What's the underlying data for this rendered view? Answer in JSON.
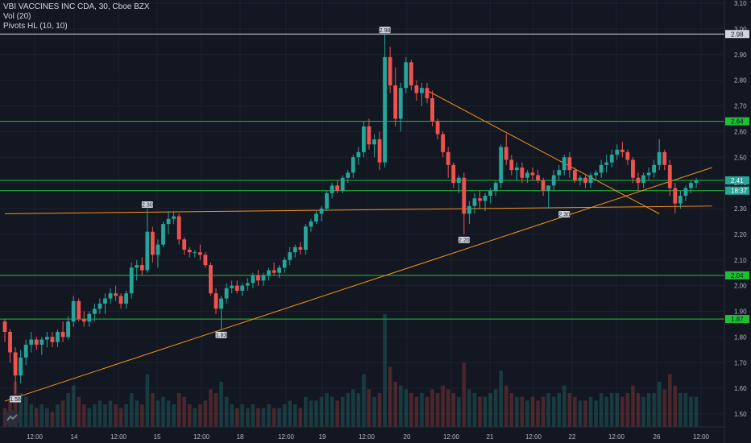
{
  "legend": {
    "title": "VBI VACCINES INC CDA, 30, Cboe BZX",
    "vol": "Vol (20)",
    "pivots": "Pivots HL (10, 10)"
  },
  "colors": {
    "background": "#131722",
    "grid": "#1e222d",
    "up": "#26a69a",
    "down": "#ef5350",
    "trendline": "#f7931a",
    "hline": "#1fbf34",
    "resistance": "#d1d4dc",
    "axis_text": "#b2b5be"
  },
  "chart_data": {
    "type": "candlestick",
    "title": "VBI VACCINES INC CDA, 30, Cboe BZX",
    "y_axis_ticks": [
      "3.10",
      "3.00",
      "2.90",
      "2.80",
      "2.70",
      "2.60",
      "2.50",
      "2.40",
      "2.30",
      "2.20",
      "2.10",
      "2.00",
      "1.90",
      "1.80",
      "1.70",
      "1.60",
      "1.50"
    ],
    "ylim": [
      1.46,
      3.1
    ],
    "x_axis_ticks": [
      "12:00",
      "14",
      "12:00",
      "15",
      "12:00",
      "18",
      "12:00",
      "19",
      "12:00",
      "20",
      "12:00",
      "21",
      "12:00",
      "22",
      "12:00",
      "26",
      "12:00"
    ],
    "price_labels": [
      {
        "value": 2.98,
        "text": "2.98",
        "style": "resistance"
      },
      {
        "value": 2.64,
        "text": "2.64",
        "style": "hline"
      },
      {
        "value": 2.41,
        "text": "2.41",
        "style": "last"
      },
      {
        "value": 2.37,
        "text": "18:37",
        "style": "countdown"
      },
      {
        "value": 2.04,
        "text": "2.04",
        "style": "hline"
      },
      {
        "value": 1.87,
        "text": "1.87",
        "style": "hline"
      }
    ],
    "horizontal_lines": [
      {
        "value": 2.98,
        "kind": "resistance"
      },
      {
        "value": 2.64,
        "kind": "level"
      },
      {
        "value": 2.41,
        "kind": "level"
      },
      {
        "value": 2.37,
        "kind": "level"
      },
      {
        "value": 2.04,
        "kind": "level"
      },
      {
        "value": 1.87,
        "kind": "level"
      }
    ],
    "trendlines": [
      {
        "from": {
          "i": 0,
          "v": 2.28
        },
        "to": {
          "i": 134,
          "v": 2.31
        }
      },
      {
        "from": {
          "i": 0,
          "v": 1.55
        },
        "to": {
          "i": 134,
          "v": 2.46
        }
      },
      {
        "from": {
          "i": 80,
          "v": 2.76
        },
        "to": {
          "i": 124,
          "v": 2.28
        }
      }
    ],
    "pivot_labels": [
      {
        "i": 2,
        "value": 1.58,
        "text": "1.58",
        "position": "below"
      },
      {
        "i": 27,
        "value": 2.3,
        "text": "2.30",
        "position": "above"
      },
      {
        "i": 41,
        "value": 1.83,
        "text": "1.83",
        "position": "below"
      },
      {
        "i": 72,
        "value": 2.98,
        "text": "2.98",
        "position": "above"
      },
      {
        "i": 87,
        "value": 2.2,
        "text": "2.20",
        "position": "below"
      },
      {
        "i": 106,
        "value": 2.3,
        "text": "2.30",
        "position": "below"
      }
    ],
    "candles_ohlc": [
      [
        1.86,
        1.87,
        1.78,
        1.82
      ],
      [
        1.82,
        1.83,
        1.7,
        1.74
      ],
      [
        1.74,
        1.76,
        1.58,
        1.65
      ],
      [
        1.65,
        1.75,
        1.62,
        1.72
      ],
      [
        1.72,
        1.79,
        1.69,
        1.77
      ],
      [
        1.77,
        1.82,
        1.74,
        1.79
      ],
      [
        1.79,
        1.8,
        1.75,
        1.77
      ],
      [
        1.77,
        1.8,
        1.73,
        1.79
      ],
      [
        1.79,
        1.82,
        1.76,
        1.8
      ],
      [
        1.8,
        1.82,
        1.76,
        1.78
      ],
      [
        1.78,
        1.83,
        1.76,
        1.82
      ],
      [
        1.82,
        1.86,
        1.78,
        1.8
      ],
      [
        1.8,
        1.88,
        1.79,
        1.86
      ],
      [
        1.86,
        1.96,
        1.84,
        1.94
      ],
      [
        1.94,
        1.95,
        1.86,
        1.87
      ],
      [
        1.87,
        1.9,
        1.84,
        1.86
      ],
      [
        1.86,
        1.9,
        1.84,
        1.89
      ],
      [
        1.89,
        1.93,
        1.86,
        1.91
      ],
      [
        1.91,
        1.95,
        1.89,
        1.93
      ],
      [
        1.93,
        1.97,
        1.89,
        1.95
      ],
      [
        1.95,
        1.99,
        1.93,
        1.97
      ],
      [
        1.97,
        2.0,
        1.94,
        1.96
      ],
      [
        1.96,
        1.97,
        1.91,
        1.93
      ],
      [
        1.93,
        1.98,
        1.91,
        1.97
      ],
      [
        1.97,
        2.09,
        1.95,
        2.07
      ],
      [
        2.07,
        2.1,
        2.02,
        2.08
      ],
      [
        2.08,
        2.11,
        2.04,
        2.06
      ],
      [
        2.06,
        2.3,
        2.05,
        2.21
      ],
      [
        2.21,
        2.23,
        2.09,
        2.12
      ],
      [
        2.12,
        2.18,
        2.07,
        2.16
      ],
      [
        2.16,
        2.25,
        2.15,
        2.24
      ],
      [
        2.24,
        2.29,
        2.2,
        2.26
      ],
      [
        2.26,
        2.29,
        2.24,
        2.27
      ],
      [
        2.27,
        2.28,
        2.16,
        2.18
      ],
      [
        2.18,
        2.19,
        2.12,
        2.14
      ],
      [
        2.14,
        2.15,
        2.11,
        2.13
      ],
      [
        2.13,
        2.14,
        2.11,
        2.13
      ],
      [
        2.13,
        2.16,
        2.1,
        2.12
      ],
      [
        2.12,
        2.13,
        2.07,
        2.08
      ],
      [
        2.08,
        2.09,
        1.96,
        1.97
      ],
      [
        1.97,
        1.99,
        1.89,
        1.91
      ],
      [
        1.91,
        1.96,
        1.83,
        1.95
      ],
      [
        1.95,
        2.01,
        1.93,
        1.99
      ],
      [
        1.99,
        2.02,
        1.97,
        2.0
      ],
      [
        2.0,
        2.02,
        1.97,
        1.98
      ],
      [
        1.98,
        2.01,
        1.96,
        2.0
      ],
      [
        2.0,
        2.03,
        1.98,
        2.01
      ],
      [
        2.01,
        2.05,
        1.99,
        2.04
      ],
      [
        2.04,
        2.06,
        2.0,
        2.02
      ],
      [
        2.02,
        2.05,
        2.0,
        2.04
      ],
      [
        2.04,
        2.07,
        2.02,
        2.06
      ],
      [
        2.06,
        2.09,
        2.04,
        2.05
      ],
      [
        2.05,
        2.08,
        2.03,
        2.07
      ],
      [
        2.07,
        2.11,
        2.05,
        2.1
      ],
      [
        2.1,
        2.15,
        2.08,
        2.13
      ],
      [
        2.13,
        2.16,
        2.11,
        2.15
      ],
      [
        2.15,
        2.17,
        2.12,
        2.14
      ],
      [
        2.14,
        2.24,
        2.12,
        2.23
      ],
      [
        2.23,
        2.26,
        2.21,
        2.25
      ],
      [
        2.25,
        2.29,
        2.24,
        2.28
      ],
      [
        2.28,
        2.31,
        2.25,
        2.3
      ],
      [
        2.3,
        2.37,
        2.29,
        2.36
      ],
      [
        2.36,
        2.4,
        2.34,
        2.39
      ],
      [
        2.39,
        2.41,
        2.36,
        2.37
      ],
      [
        2.37,
        2.43,
        2.36,
        2.42
      ],
      [
        2.42,
        2.45,
        2.4,
        2.44
      ],
      [
        2.44,
        2.51,
        2.42,
        2.5
      ],
      [
        2.5,
        2.54,
        2.47,
        2.52
      ],
      [
        2.52,
        2.64,
        2.5,
        2.62
      ],
      [
        2.62,
        2.65,
        2.53,
        2.55
      ],
      [
        2.55,
        2.59,
        2.5,
        2.57
      ],
      [
        2.57,
        2.6,
        2.45,
        2.48
      ],
      [
        2.48,
        2.98,
        2.46,
        2.89
      ],
      [
        2.89,
        2.93,
        2.75,
        2.78
      ],
      [
        2.78,
        2.85,
        2.62,
        2.65
      ],
      [
        2.65,
        2.79,
        2.6,
        2.77
      ],
      [
        2.77,
        2.89,
        2.75,
        2.87
      ],
      [
        2.87,
        2.88,
        2.76,
        2.78
      ],
      [
        2.78,
        2.8,
        2.72,
        2.75
      ],
      [
        2.75,
        2.79,
        2.7,
        2.77
      ],
      [
        2.77,
        2.79,
        2.71,
        2.73
      ],
      [
        2.73,
        2.76,
        2.62,
        2.64
      ],
      [
        2.64,
        2.65,
        2.57,
        2.59
      ],
      [
        2.59,
        2.6,
        2.5,
        2.52
      ],
      [
        2.52,
        2.54,
        2.42,
        2.47
      ],
      [
        2.47,
        2.48,
        2.38,
        2.4
      ],
      [
        2.4,
        2.43,
        2.36,
        2.42
      ],
      [
        2.42,
        2.44,
        2.2,
        2.28
      ],
      [
        2.28,
        2.33,
        2.24,
        2.31
      ],
      [
        2.31,
        2.36,
        2.28,
        2.34
      ],
      [
        2.34,
        2.37,
        2.3,
        2.33
      ],
      [
        2.33,
        2.36,
        2.29,
        2.35
      ],
      [
        2.35,
        2.38,
        2.32,
        2.37
      ],
      [
        2.37,
        2.41,
        2.35,
        2.4
      ],
      [
        2.4,
        2.55,
        2.38,
        2.54
      ],
      [
        2.54,
        2.59,
        2.47,
        2.49
      ],
      [
        2.49,
        2.51,
        2.43,
        2.45
      ],
      [
        2.45,
        2.48,
        2.41,
        2.46
      ],
      [
        2.46,
        2.48,
        2.4,
        2.42
      ],
      [
        2.42,
        2.45,
        2.4,
        2.44
      ],
      [
        2.44,
        2.46,
        2.41,
        2.43
      ],
      [
        2.43,
        2.45,
        2.4,
        2.41
      ],
      [
        2.41,
        2.42,
        2.35,
        2.37
      ],
      [
        2.37,
        2.39,
        2.3,
        2.39
      ],
      [
        2.39,
        2.45,
        2.37,
        2.43
      ],
      [
        2.43,
        2.47,
        2.41,
        2.45
      ],
      [
        2.45,
        2.51,
        2.43,
        2.5
      ],
      [
        2.5,
        2.52,
        2.42,
        2.45
      ],
      [
        2.45,
        2.46,
        2.4,
        2.41
      ],
      [
        2.41,
        2.43,
        2.39,
        2.42
      ],
      [
        2.42,
        2.43,
        2.38,
        2.4
      ],
      [
        2.4,
        2.44,
        2.38,
        2.43
      ],
      [
        2.43,
        2.45,
        2.41,
        2.44
      ],
      [
        2.44,
        2.49,
        2.42,
        2.47
      ],
      [
        2.47,
        2.51,
        2.44,
        2.48
      ],
      [
        2.48,
        2.53,
        2.46,
        2.51
      ],
      [
        2.51,
        2.55,
        2.49,
        2.53
      ],
      [
        2.53,
        2.56,
        2.5,
        2.52
      ],
      [
        2.52,
        2.53,
        2.47,
        2.49
      ],
      [
        2.49,
        2.5,
        2.4,
        2.42
      ],
      [
        2.42,
        2.44,
        2.37,
        2.4
      ],
      [
        2.4,
        2.44,
        2.38,
        2.43
      ],
      [
        2.43,
        2.46,
        2.41,
        2.44
      ],
      [
        2.44,
        2.49,
        2.42,
        2.47
      ],
      [
        2.47,
        2.57,
        2.45,
        2.52
      ],
      [
        2.52,
        2.53,
        2.45,
        2.47
      ],
      [
        2.47,
        2.49,
        2.35,
        2.38
      ],
      [
        2.38,
        2.4,
        2.28,
        2.32
      ],
      [
        2.32,
        2.37,
        2.3,
        2.35
      ],
      [
        2.35,
        2.39,
        2.33,
        2.38
      ],
      [
        2.38,
        2.41,
        2.36,
        2.4
      ],
      [
        2.4,
        2.42,
        2.38,
        2.41
      ]
    ],
    "volumes": [
      5,
      7,
      12,
      9,
      8,
      6,
      5,
      6,
      5,
      4,
      6,
      7,
      9,
      11,
      8,
      6,
      5,
      6,
      7,
      6,
      7,
      6,
      5,
      6,
      9,
      7,
      6,
      14,
      9,
      7,
      8,
      7,
      6,
      9,
      8,
      6,
      5,
      6,
      7,
      10,
      9,
      12,
      8,
      6,
      5,
      6,
      5,
      6,
      5,
      5,
      6,
      5,
      5,
      6,
      7,
      6,
      5,
      8,
      7,
      7,
      8,
      9,
      8,
      7,
      8,
      9,
      10,
      9,
      14,
      10,
      8,
      9,
      30,
      16,
      12,
      11,
      10,
      9,
      8,
      9,
      8,
      10,
      9,
      11,
      10,
      9,
      8,
      17,
      10,
      9,
      8,
      8,
      9,
      10,
      15,
      11,
      9,
      8,
      8,
      7,
      8,
      7,
      8,
      9,
      8,
      9,
      11,
      9,
      8,
      7,
      7,
      8,
      7,
      9,
      8,
      9,
      9,
      8,
      9,
      11,
      9,
      8,
      9,
      9,
      12,
      10,
      14,
      11,
      9,
      9,
      8,
      8
    ]
  }
}
